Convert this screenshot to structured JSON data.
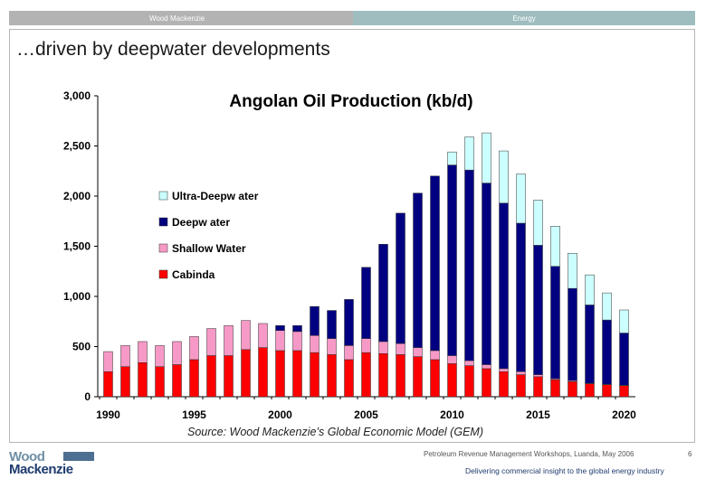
{
  "header": {
    "left_label": "Wood Mackenzie",
    "right_label": "Energy"
  },
  "slide_title": "…driven by deepwater developments",
  "source_note": "Source: Wood Mackenzie’s Global Economic Model (GEM)",
  "footer": {
    "logo_line1": "Wood",
    "logo_line2": "Mackenzie",
    "event": "Petroleum Revenue Management Workshops, Luanda, May 2006",
    "page": "6",
    "tagline": "Delivering commercial insight to the global energy industry"
  },
  "colors": {
    "cabinda": "#ff0000",
    "shallow": "#f799c6",
    "deep": "#000080",
    "ultra": "#ccffff"
  },
  "chart_data": {
    "type": "bar",
    "stacked": true,
    "title": "Angolan Oil Production (kb/d)",
    "xlabel": "",
    "ylabel": "",
    "ylim": [
      0,
      3000
    ],
    "yticks": [
      "0",
      "500",
      "1,000",
      "1,500",
      "2,000",
      "2,500",
      "3,000"
    ],
    "xtick_labels": [
      "1990",
      "1995",
      "2000",
      "2005",
      "2010",
      "2015",
      "2020"
    ],
    "legend_position": "left",
    "categories": [
      1990,
      1991,
      1992,
      1993,
      1994,
      1995,
      1996,
      1997,
      1998,
      1999,
      2000,
      2001,
      2002,
      2003,
      2004,
      2005,
      2006,
      2007,
      2008,
      2009,
      2010,
      2011,
      2012,
      2013,
      2014,
      2015,
      2016,
      2017,
      2018,
      2019,
      2020
    ],
    "series": [
      {
        "name": "Cabinda",
        "values": [
          250,
          300,
          340,
          300,
          320,
          370,
          410,
          410,
          470,
          490,
          460,
          460,
          440,
          420,
          370,
          440,
          430,
          420,
          400,
          370,
          330,
          310,
          280,
          250,
          220,
          200,
          170,
          150,
          130,
          120,
          110
        ]
      },
      {
        "name": "Shallow  Water",
        "values": [
          200,
          210,
          210,
          210,
          230,
          230,
          270,
          300,
          290,
          240,
          200,
          190,
          170,
          160,
          140,
          140,
          120,
          110,
          90,
          90,
          80,
          50,
          40,
          30,
          30,
          20,
          10,
          10,
          5,
          5,
          5
        ]
      },
      {
        "name": "Deepw ater",
        "values": [
          0,
          0,
          0,
          0,
          0,
          0,
          0,
          0,
          0,
          0,
          50,
          60,
          290,
          280,
          460,
          710,
          970,
          1300,
          1540,
          1740,
          1900,
          1900,
          1810,
          1650,
          1480,
          1290,
          1120,
          920,
          780,
          640,
          520
        ]
      },
      {
        "name": "Ultra-Deepw ater",
        "values": [
          0,
          0,
          0,
          0,
          0,
          0,
          0,
          0,
          0,
          0,
          0,
          0,
          0,
          0,
          0,
          0,
          0,
          0,
          0,
          0,
          130,
          330,
          500,
          520,
          490,
          450,
          400,
          350,
          300,
          270,
          230
        ]
      }
    ],
    "grid": false
  }
}
